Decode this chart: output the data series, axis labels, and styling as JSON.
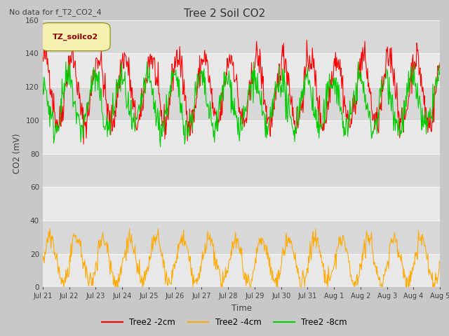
{
  "title": "Tree 2 Soil CO2",
  "suptitle": "No data for f_T2_CO2_4",
  "ylabel": "CO2 (mV)",
  "xlabel": "Time",
  "legend_label": "TZ_soilco2",
  "ylim": [
    0,
    160
  ],
  "yticks": [
    0,
    20,
    40,
    60,
    80,
    100,
    120,
    140,
    160
  ],
  "xtick_labels": [
    "Jul 21",
    "Jul 22",
    "Jul 23",
    "Jul 24",
    "Jul 25",
    "Jul 26",
    "Jul 27",
    "Jul 28",
    "Jul 29",
    "Jul 30",
    "Jul 31",
    "Aug 1",
    "Aug 2",
    "Aug 3",
    "Aug 4",
    "Aug 5"
  ],
  "n_days": 15,
  "bg_color": "#c8c8c8",
  "plot_bg_color": "#d8d8d8",
  "band_color": "#e8e8e8",
  "line_colors": {
    "red": "#ff0000",
    "orange": "#ffaa00",
    "green": "#00cc00"
  },
  "series_labels": [
    "Tree2 -2cm",
    "Tree2 -4cm",
    "Tree2 -8cm"
  ],
  "figsize": [
    6.4,
    4.8
  ],
  "dpi": 100
}
